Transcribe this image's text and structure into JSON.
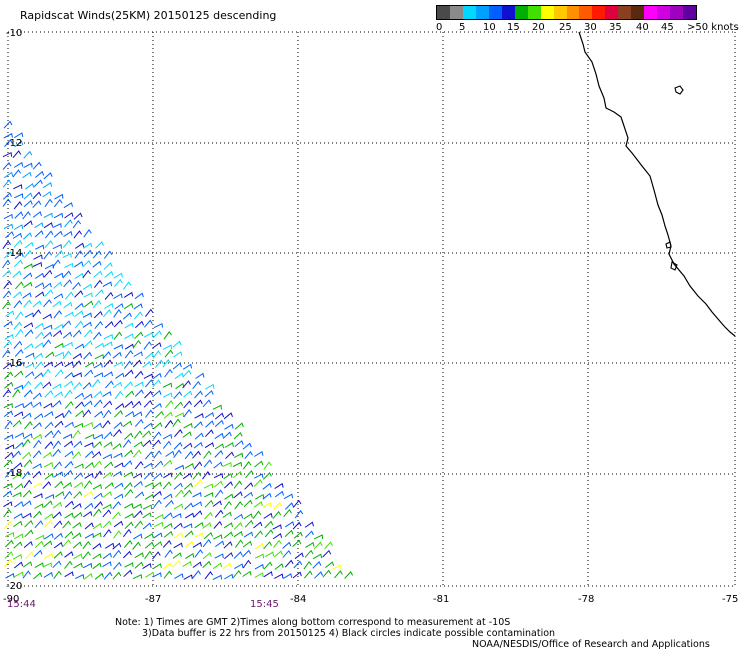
{
  "title": "Rapidscat Winds(25KM) 20150125 descending",
  "legend": {
    "colors": [
      "#4a4a4a",
      "#8a8a8a",
      "#00d8ff",
      "#00a0ff",
      "#0060ff",
      "#1010d0",
      "#00b000",
      "#40e000",
      "#ffff00",
      "#ffc800",
      "#ff9000",
      "#ff5a00",
      "#ff1a00",
      "#e00040",
      "#8a4020",
      "#5a2a10",
      "#ff00ff",
      "#d000e0",
      "#a000c0",
      "#6000a0"
    ],
    "labels": [
      "0",
      "5",
      "10",
      "15",
      "20",
      "25",
      "30",
      "35",
      "40",
      "45",
      ">50 knots"
    ]
  },
  "lat_labels": [
    "-10",
    "-12",
    "-14",
    "-16",
    "-18",
    "-20"
  ],
  "lon_labels": [
    "-90",
    "-87",
    "-84",
    "-81",
    "-78",
    "-75"
  ],
  "times": [
    "15:44",
    "15:45"
  ],
  "notes": [
    "Note: 1) Times are GMT 2)Times along bottom correspond to measurement at -10S",
    "3)Data buffer is 22 hrs from 20150125 4) Black circles indicate possible contamination",
    "NOAA/NESDIS/Office of Research and Applications"
  ]
}
